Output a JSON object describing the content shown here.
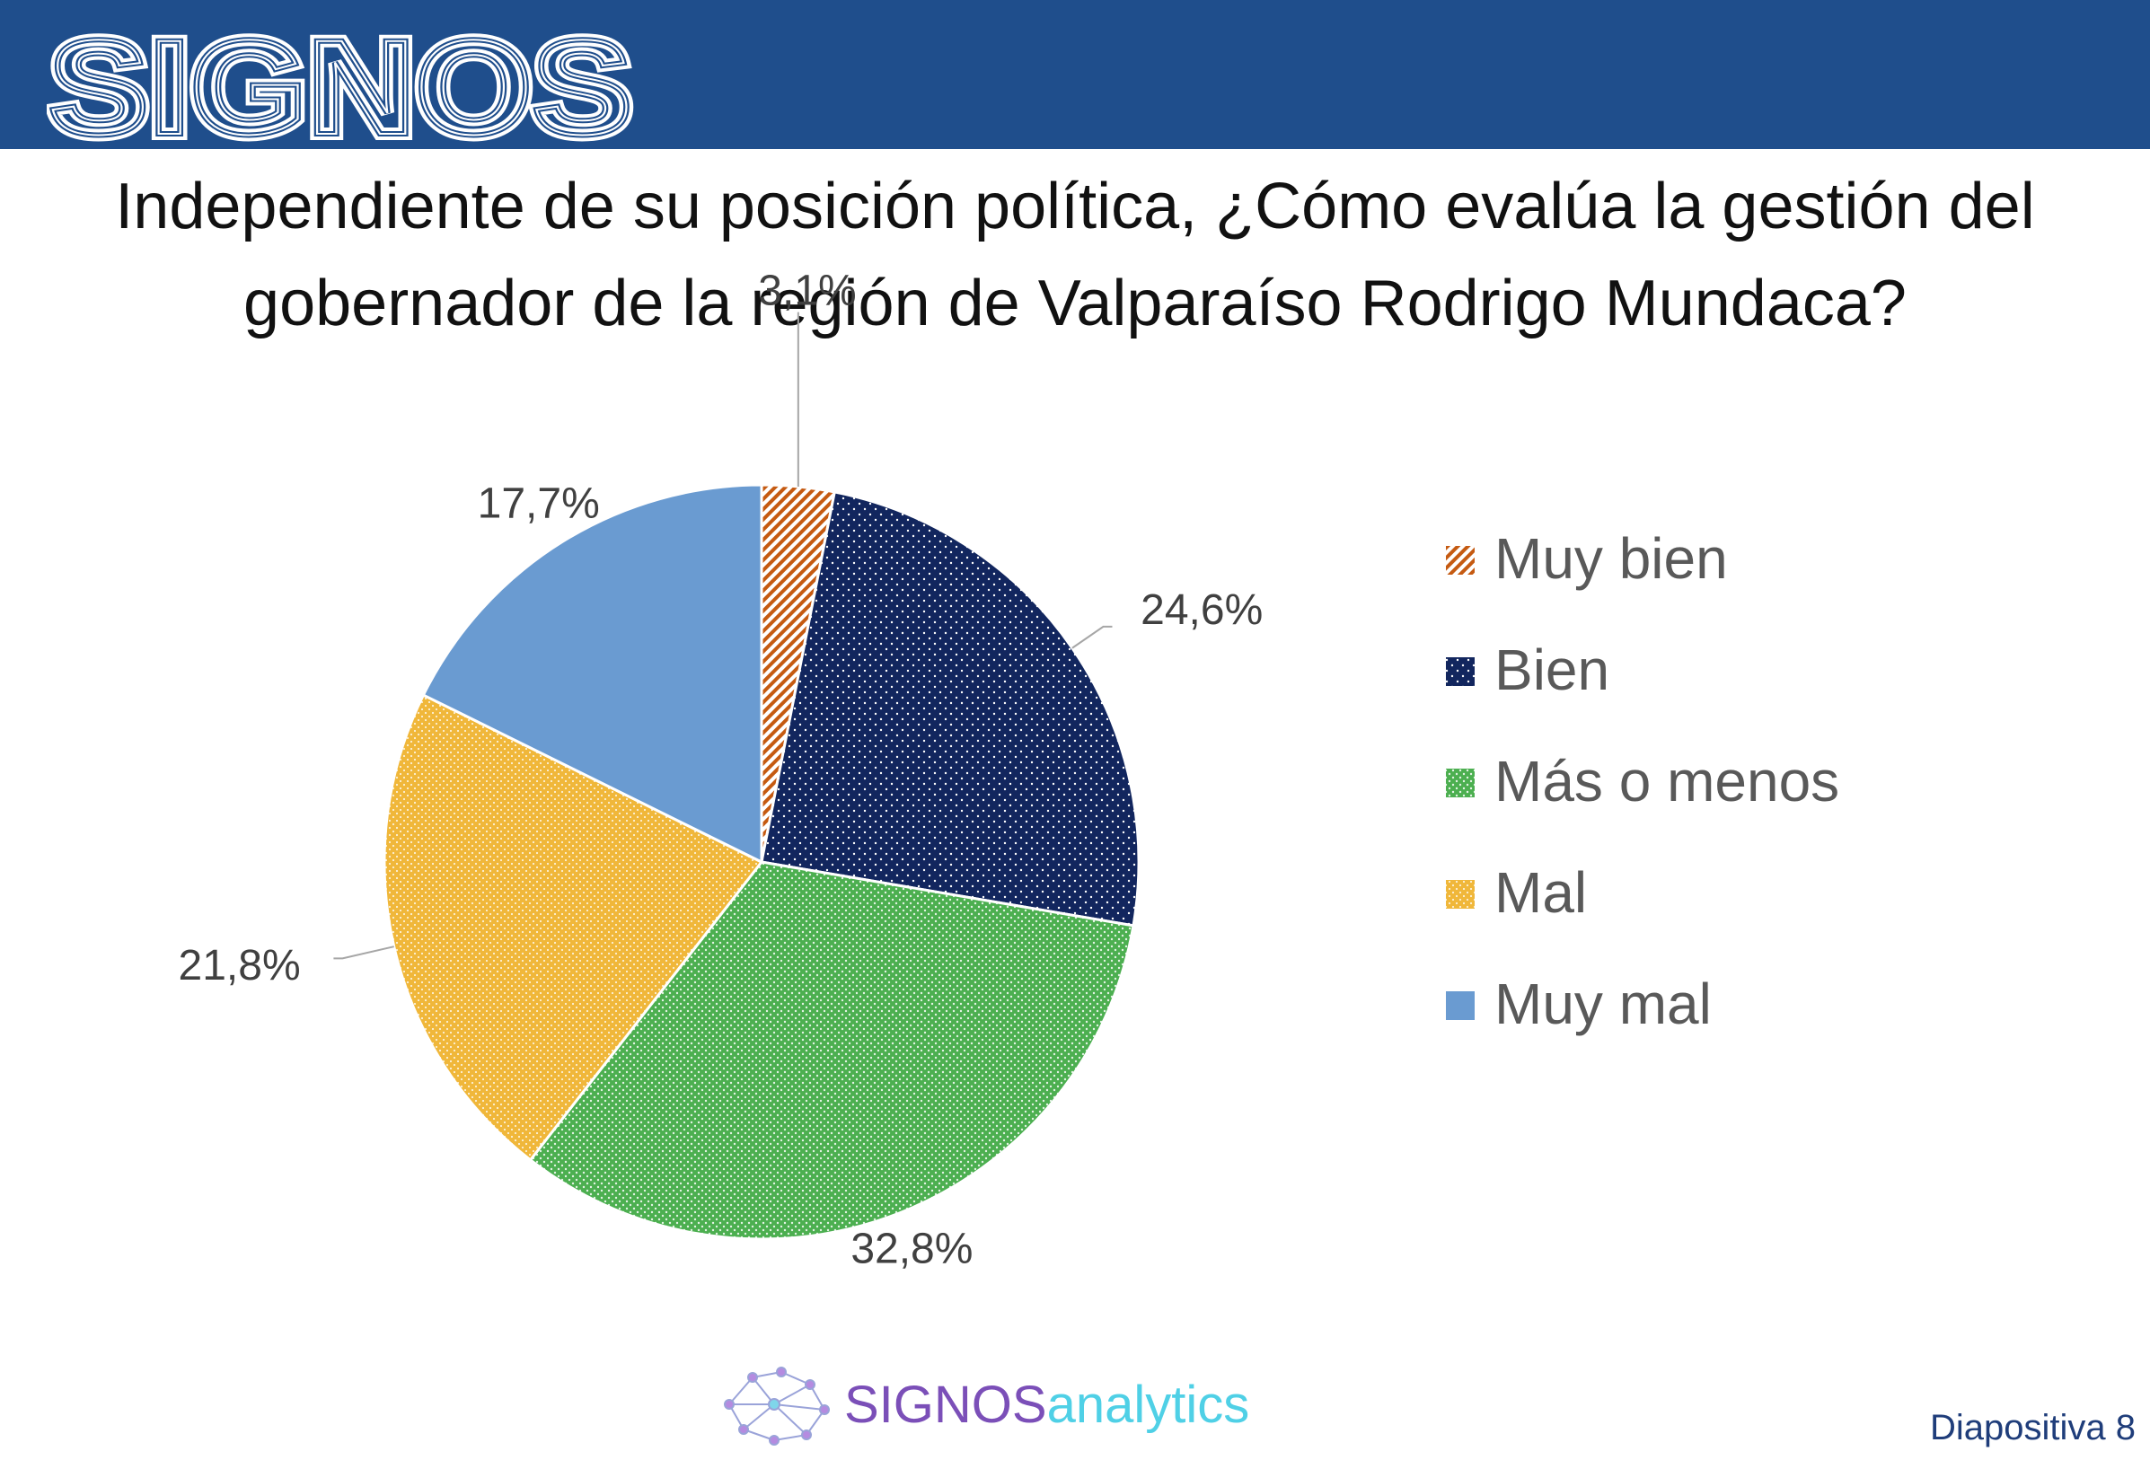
{
  "header": {
    "brand_name": "SIGNOS",
    "bar_color": "#1f4e8c"
  },
  "question": {
    "line1": "Independiente de su posición política, ¿Cómo evalúa la gestión del",
    "line2": "gobernador de la región de Valparaíso Rodrigo Mundaca?"
  },
  "chart_data": {
    "type": "pie",
    "title": "Independiente de su posición política, ¿Cómo evalúa la gestión del gobernador de la región de Valparaíso Rodrigo Mundaca?",
    "legend_position": "right",
    "slices": [
      {
        "label": "Muy bien",
        "value": 3.1,
        "display": "3,1%",
        "color": "#c55a11",
        "pattern": "diagonal-stripes"
      },
      {
        "label": "Bien",
        "value": 24.6,
        "display": "24,6%",
        "color": "#12265e",
        "pattern": "dots"
      },
      {
        "label": "Más o menos",
        "value": 32.8,
        "display": "32,8%",
        "color": "#4caf50",
        "pattern": "dots"
      },
      {
        "label": "Mal",
        "value": 21.8,
        "display": "21,8%",
        "color": "#f0b73a",
        "pattern": "dots"
      },
      {
        "label": "Muy mal",
        "value": 17.7,
        "display": "17,7%",
        "color": "#6a9bd1",
        "pattern": "solid"
      }
    ]
  },
  "footer": {
    "brand_part1": "SIGNOS",
    "brand_part2": "analytics",
    "brand_color1": "#7b4fb8",
    "brand_color2": "#4fd0e6",
    "slide_label": "Diapositiva 8"
  }
}
